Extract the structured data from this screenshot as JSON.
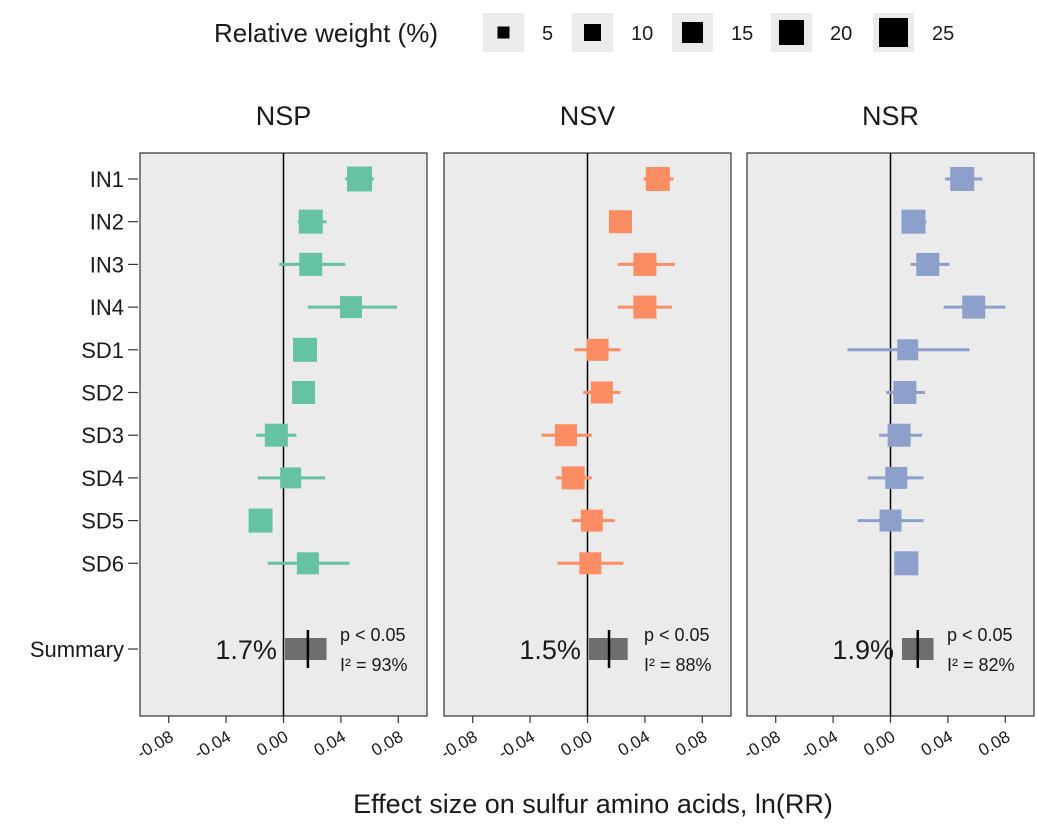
{
  "chart_data": {
    "type": "forest",
    "x_axis_label": "Effect size on sulfur amino acids, ln(RR)",
    "x_ticks": [
      "-0.08",
      "-0.04",
      "0.00",
      "0.04",
      "0.08"
    ],
    "x_tick_values": [
      -0.08,
      -0.04,
      0.0,
      0.04,
      0.08
    ],
    "xlim": [
      -0.1,
      0.1
    ],
    "categories": [
      "IN1",
      "IN2",
      "IN3",
      "IN4",
      "SD1",
      "SD2",
      "SD3",
      "SD4",
      "SD5",
      "SD6"
    ],
    "summary_label": "Summary",
    "reference_line": 0,
    "background": "#ebebeb",
    "legend": {
      "title": "Relative weight (%)",
      "items": [
        {
          "label": "5",
          "weight": 5
        },
        {
          "label": "10",
          "weight": 10
        },
        {
          "label": "15",
          "weight": 15
        },
        {
          "label": "20",
          "weight": 20
        },
        {
          "label": "25",
          "weight": 25
        }
      ]
    },
    "panels": [
      {
        "name": "NSP",
        "color": "#66c2a5",
        "studies": [
          {
            "label": "IN1",
            "est": 0.053,
            "lo": 0.043,
            "hi": 0.063,
            "weight": 12
          },
          {
            "label": "IN2",
            "est": 0.019,
            "lo": 0.01,
            "hi": 0.03,
            "weight": 11
          },
          {
            "label": "IN3",
            "est": 0.019,
            "lo": -0.003,
            "hi": 0.043,
            "weight": 10
          },
          {
            "label": "IN4",
            "est": 0.047,
            "lo": 0.017,
            "hi": 0.079,
            "weight": 9
          },
          {
            "label": "SD1",
            "est": 0.015,
            "lo": 0.011,
            "hi": 0.019,
            "weight": 11
          },
          {
            "label": "SD2",
            "est": 0.014,
            "lo": 0.011,
            "hi": 0.017,
            "weight": 10
          },
          {
            "label": "SD3",
            "est": -0.005,
            "lo": -0.019,
            "hi": 0.009,
            "weight": 10
          },
          {
            "label": "SD4",
            "est": 0.005,
            "lo": -0.018,
            "hi": 0.029,
            "weight": 8
          },
          {
            "label": "SD5",
            "est": -0.016,
            "lo": -0.022,
            "hi": -0.01,
            "weight": 11
          },
          {
            "label": "SD6",
            "est": 0.017,
            "lo": -0.011,
            "hi": 0.046,
            "weight": 9
          }
        ],
        "summary": {
          "est": 0.017,
          "lo": 0.001,
          "hi": 0.03,
          "pct": "1.7%",
          "p": "p < 0.05",
          "i2": "I² = 93%"
        }
      },
      {
        "name": "NSV",
        "color": "#fc8d62",
        "studies": [
          {
            "label": "IN1",
            "est": 0.049,
            "lo": 0.039,
            "hi": 0.06,
            "weight": 11
          },
          {
            "label": "IN2",
            "est": 0.023,
            "lo": 0.016,
            "hi": 0.029,
            "weight": 10
          },
          {
            "label": "IN3",
            "est": 0.04,
            "lo": 0.021,
            "hi": 0.061,
            "weight": 10
          },
          {
            "label": "IN4",
            "est": 0.04,
            "lo": 0.021,
            "hi": 0.059,
            "weight": 10
          },
          {
            "label": "SD1",
            "est": 0.007,
            "lo": -0.009,
            "hi": 0.023,
            "weight": 9
          },
          {
            "label": "SD2",
            "est": 0.01,
            "lo": -0.003,
            "hi": 0.023,
            "weight": 9
          },
          {
            "label": "SD3",
            "est": -0.015,
            "lo": -0.032,
            "hi": 0.003,
            "weight": 9
          },
          {
            "label": "SD4",
            "est": -0.01,
            "lo": -0.022,
            "hi": 0.003,
            "weight": 10
          },
          {
            "label": "SD5",
            "est": 0.003,
            "lo": -0.011,
            "hi": 0.019,
            "weight": 9
          },
          {
            "label": "SD6",
            "est": 0.002,
            "lo": -0.021,
            "hi": 0.025,
            "weight": 9
          }
        ],
        "summary": {
          "est": 0.015,
          "lo": 0.001,
          "hi": 0.028,
          "pct": "1.5%",
          "p": "p < 0.05",
          "i2": "I² = 88%"
        }
      },
      {
        "name": "NSR",
        "color": "#8da0cb",
        "studies": [
          {
            "label": "IN1",
            "est": 0.05,
            "lo": 0.038,
            "hi": 0.064,
            "weight": 11
          },
          {
            "label": "IN2",
            "est": 0.016,
            "lo": 0.008,
            "hi": 0.025,
            "weight": 11
          },
          {
            "label": "IN3",
            "est": 0.026,
            "lo": 0.014,
            "hi": 0.041,
            "weight": 10
          },
          {
            "label": "IN4",
            "est": 0.058,
            "lo": 0.037,
            "hi": 0.08,
            "weight": 10
          },
          {
            "label": "SD1",
            "est": 0.012,
            "lo": -0.03,
            "hi": 0.055,
            "weight": 8
          },
          {
            "label": "SD2",
            "est": 0.01,
            "lo": -0.003,
            "hi": 0.024,
            "weight": 10
          },
          {
            "label": "SD3",
            "est": 0.006,
            "lo": -0.008,
            "hi": 0.022,
            "weight": 10
          },
          {
            "label": "SD4",
            "est": 0.004,
            "lo": -0.016,
            "hi": 0.023,
            "weight": 9
          },
          {
            "label": "SD5",
            "est": 0.0,
            "lo": -0.023,
            "hi": 0.023,
            "weight": 9
          },
          {
            "label": "SD6",
            "est": 0.011,
            "lo": 0.004,
            "hi": 0.018,
            "weight": 11
          }
        ],
        "summary": {
          "est": 0.019,
          "lo": 0.008,
          "hi": 0.03,
          "pct": "1.9%",
          "p": "p < 0.05",
          "i2": "I² = 82%"
        }
      }
    ]
  }
}
